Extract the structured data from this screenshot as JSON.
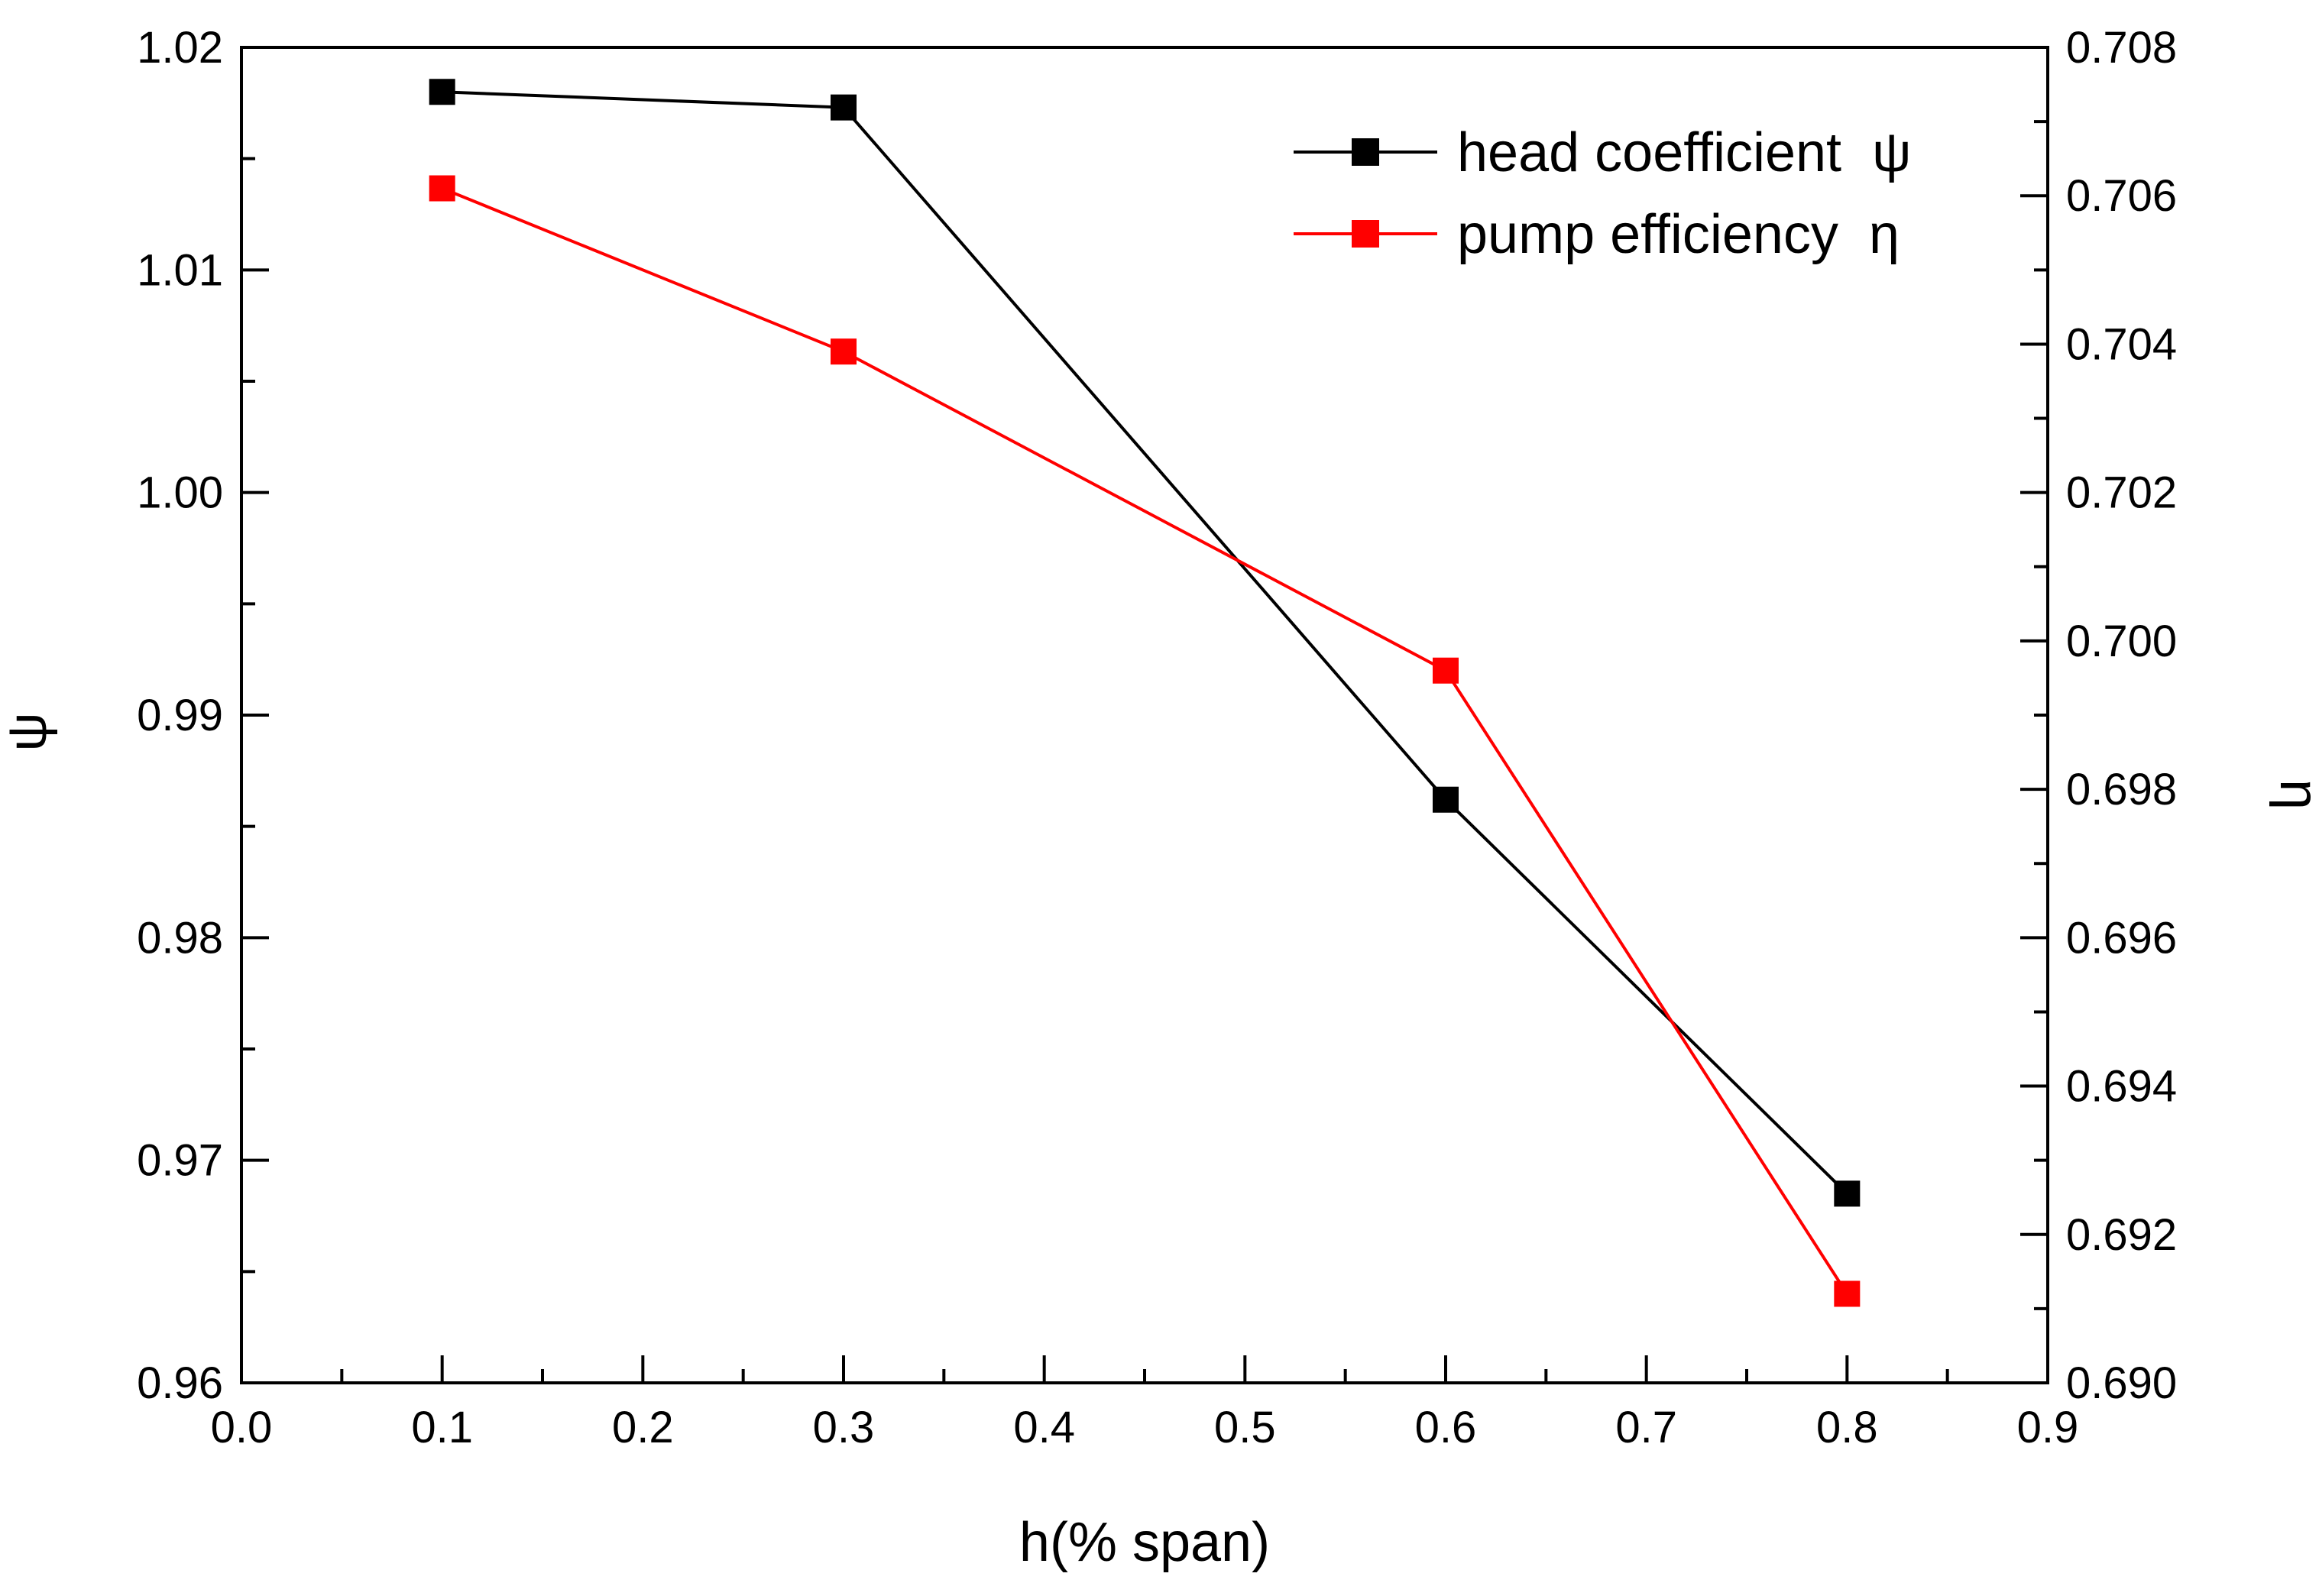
{
  "chart_data": {
    "type": "line",
    "title": "",
    "xlabel": "h(% span)",
    "ylabel_left": "ψ",
    "ylabel_right": "η",
    "xlim": [
      0.0,
      0.9
    ],
    "ylim_left": [
      0.96,
      1.02
    ],
    "ylim_right": [
      0.69,
      0.708
    ],
    "x_ticks": [
      "0.0",
      "0.1",
      "0.2",
      "0.3",
      "0.4",
      "0.5",
      "0.6",
      "0.7",
      "0.8",
      "0.9"
    ],
    "y_left_ticks": [
      "0.96",
      "0.97",
      "0.98",
      "0.99",
      "1.00",
      "1.01",
      "1.02"
    ],
    "y_right_ticks": [
      "0.690",
      "0.692",
      "0.694",
      "0.696",
      "0.698",
      "0.700",
      "0.702",
      "0.704",
      "0.706",
      "0.708"
    ],
    "grid": false,
    "legend_position": "top-right",
    "x": [
      0.1,
      0.3,
      0.6,
      0.8
    ],
    "series": [
      {
        "name": "head coefficient",
        "symbol": "ψ",
        "axis": "left",
        "color": "#000000",
        "values": [
          1.018,
          1.0173,
          0.9862,
          0.9685
        ]
      },
      {
        "name": "pump efficiency",
        "symbol": "η",
        "axis": "right",
        "color": "#ff0000",
        "values": [
          0.7061,
          0.7039,
          0.6996,
          0.6912
        ]
      }
    ]
  }
}
